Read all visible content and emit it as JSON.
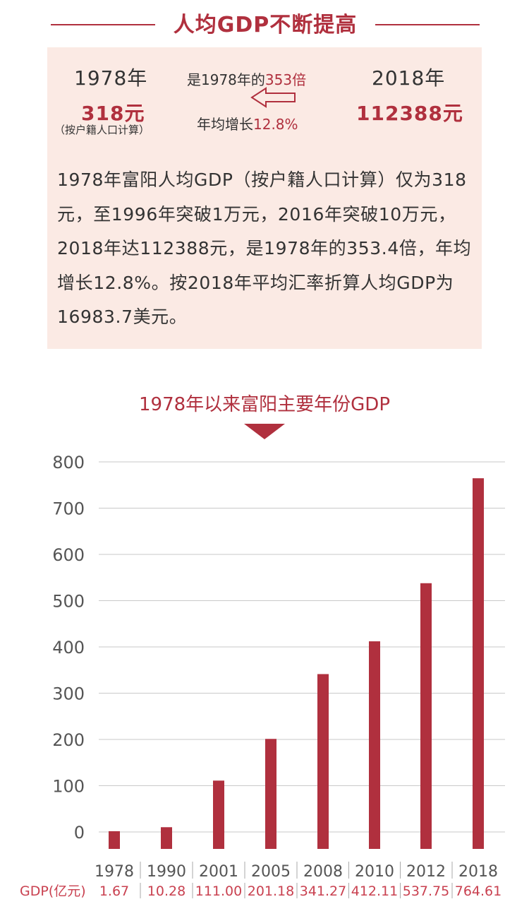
{
  "header": {
    "title": "人均GDP不断提高"
  },
  "info": {
    "year_left": "1978年",
    "value_left": "318元",
    "note_left": "（按户籍人口计算）",
    "multiple_prefix": "是1978年的",
    "multiple_value": "353倍",
    "growth_prefix": "年均增长",
    "growth_value": "12.8%",
    "year_right": "2018年",
    "value_right": "112388元",
    "paragraph": "1978年富阳人均GDP（按户籍人口计算）仅为318元，至1996年突破1万元，2016年突破10万元，2018年达112388元，是1978年的353.4倍，年均增长12.8%。按2018年平均汇率折算人均GDP为16983.7美元。"
  },
  "colors": {
    "accent": "#b0303e",
    "panel": "#fbeae4"
  },
  "icons": {
    "arrow": "left-arrow-icon",
    "pointer": "down-triangle-icon"
  },
  "chart_data": {
    "type": "bar",
    "title": "1978年以来富阳主要年份GDP",
    "categories": [
      "1978",
      "1990",
      "2001",
      "2005",
      "2008",
      "2010",
      "2012",
      "2018"
    ],
    "values": [
      1.67,
      10.28,
      111.0,
      201.18,
      341.27,
      412.11,
      537.75,
      764.61
    ],
    "value_labels": [
      "1.67",
      "10.28",
      "111.00",
      "201.18",
      "341.27",
      "412.11",
      "537.75",
      "764.61"
    ],
    "row_label": "GDP(亿元)",
    "ylim": [
      0,
      800
    ],
    "yticks": [
      0,
      100,
      200,
      300,
      400,
      500,
      600,
      700,
      800
    ],
    "grid": true
  }
}
